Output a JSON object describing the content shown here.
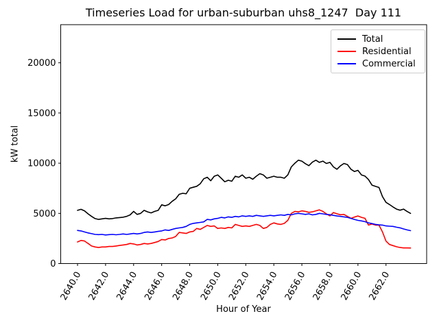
{
  "chart_data": {
    "type": "line",
    "title": "Timeseries Load for urban-suburban uhs8_1247  Day 111",
    "xlabel": "Hour of Year",
    "ylabel": "kW total",
    "grid": false,
    "legend_position": "upper right",
    "xlim": [
      2638.8,
      2664.9
    ],
    "ylim": [
      0,
      23800
    ],
    "xticks": [
      2640,
      2642,
      2644,
      2646,
      2648,
      2650,
      2652,
      2654,
      2656,
      2658,
      2660,
      2662
    ],
    "xtick_labels": [
      "2640.0",
      "2642.0",
      "2644.0",
      "2646.0",
      "2648.0",
      "2650.0",
      "2652.0",
      "2654.0",
      "2656.0",
      "2658.0",
      "2660.0",
      "2662.0"
    ],
    "yticks": [
      0,
      5000,
      10000,
      15000,
      20000
    ],
    "ytick_labels": [
      "0",
      "5000",
      "10000",
      "15000",
      "20000"
    ],
    "x": [
      2640.0,
      2640.25,
      2640.5,
      2640.75,
      2641.0,
      2641.25,
      2641.5,
      2641.75,
      2642.0,
      2642.25,
      2642.5,
      2642.75,
      2643.0,
      2643.25,
      2643.5,
      2643.75,
      2644.0,
      2644.25,
      2644.5,
      2644.75,
      2645.0,
      2645.25,
      2645.5,
      2645.75,
      2646.0,
      2646.25,
      2646.5,
      2646.75,
      2647.0,
      2647.25,
      2647.5,
      2647.75,
      2648.0,
      2648.25,
      2648.5,
      2648.75,
      2649.0,
      2649.25,
      2649.5,
      2649.75,
      2650.0,
      2650.25,
      2650.5,
      2650.75,
      2651.0,
      2651.25,
      2651.5,
      2651.75,
      2652.0,
      2652.25,
      2652.5,
      2652.75,
      2653.0,
      2653.25,
      2653.5,
      2653.75,
      2654.0,
      2654.25,
      2654.5,
      2654.75,
      2655.0,
      2655.25,
      2655.5,
      2655.75,
      2656.0,
      2656.25,
      2656.5,
      2656.75,
      2657.0,
      2657.25,
      2657.5,
      2657.75,
      2658.0,
      2658.25,
      2658.5,
      2658.75,
      2659.0,
      2659.25,
      2659.5,
      2659.75,
      2660.0,
      2660.25,
      2660.5,
      2660.75,
      2661.0,
      2661.25,
      2661.5,
      2661.75,
      2662.0,
      2662.25,
      2662.5,
      2662.75,
      2663.0,
      2663.25,
      2663.5,
      2663.75
    ],
    "series": [
      {
        "name": "Total",
        "color": "#000000",
        "values": [
          5300,
          5400,
          5250,
          4950,
          4700,
          4480,
          4400,
          4450,
          4500,
          4450,
          4480,
          4550,
          4580,
          4620,
          4700,
          4850,
          5200,
          4900,
          5000,
          5300,
          5150,
          5050,
          5200,
          5300,
          5850,
          5750,
          5880,
          6200,
          6450,
          6900,
          7000,
          6950,
          7500,
          7600,
          7700,
          7950,
          8450,
          8600,
          8250,
          8700,
          8830,
          8500,
          8150,
          8300,
          8200,
          8700,
          8600,
          8830,
          8500,
          8600,
          8400,
          8700,
          8950,
          8830,
          8500,
          8600,
          8700,
          8600,
          8600,
          8500,
          8830,
          9630,
          10000,
          10300,
          10200,
          9950,
          9750,
          10100,
          10300,
          10080,
          10200,
          9970,
          10080,
          9630,
          9400,
          9740,
          9970,
          9860,
          9400,
          9170,
          9290,
          8830,
          8715,
          8370,
          7810,
          7690,
          7580,
          6670,
          6100,
          5880,
          5640,
          5420,
          5310,
          5420,
          5200,
          5000
        ]
      },
      {
        "name": "Residential",
        "color": "#ff0000",
        "values": [
          2150,
          2300,
          2250,
          2000,
          1750,
          1650,
          1600,
          1650,
          1650,
          1700,
          1700,
          1750,
          1800,
          1850,
          1900,
          2000,
          1950,
          1850,
          1900,
          2000,
          1950,
          2000,
          2100,
          2200,
          2400,
          2350,
          2500,
          2550,
          2700,
          3100,
          3050,
          3000,
          3150,
          3200,
          3500,
          3400,
          3600,
          3800,
          3700,
          3750,
          3500,
          3550,
          3500,
          3600,
          3550,
          3900,
          3800,
          3700,
          3750,
          3700,
          3800,
          3900,
          3800,
          3500,
          3600,
          3900,
          4050,
          3950,
          3900,
          4000,
          4300,
          5000,
          5200,
          5150,
          5250,
          5200,
          5100,
          5150,
          5250,
          5350,
          5200,
          4950,
          4750,
          5080,
          4960,
          4860,
          4900,
          4700,
          4510,
          4630,
          4740,
          4600,
          4510,
          3830,
          3940,
          3830,
          3830,
          3150,
          2240,
          1900,
          1790,
          1670,
          1600,
          1560,
          1560,
          1550
        ]
      },
      {
        "name": "Commercial",
        "color": "#0000ff",
        "values": [
          3300,
          3250,
          3150,
          3050,
          2980,
          2900,
          2880,
          2900,
          2850,
          2880,
          2900,
          2870,
          2900,
          2950,
          2900,
          2950,
          3000,
          2950,
          3000,
          3100,
          3150,
          3100,
          3150,
          3200,
          3250,
          3350,
          3300,
          3400,
          3500,
          3550,
          3600,
          3700,
          3900,
          4000,
          4050,
          4100,
          4150,
          4400,
          4350,
          4450,
          4500,
          4600,
          4550,
          4650,
          4600,
          4700,
          4650,
          4750,
          4700,
          4750,
          4700,
          4800,
          4750,
          4700,
          4750,
          4800,
          4750,
          4800,
          4850,
          4800,
          4900,
          4850,
          4950,
          5000,
          4950,
          4900,
          4950,
          4850,
          4900,
          5000,
          4950,
          4900,
          4860,
          4800,
          4740,
          4700,
          4650,
          4600,
          4500,
          4400,
          4300,
          4250,
          4170,
          4050,
          3980,
          3900,
          3850,
          3830,
          3750,
          3720,
          3700,
          3620,
          3560,
          3450,
          3350,
          3280
        ]
      }
    ]
  }
}
